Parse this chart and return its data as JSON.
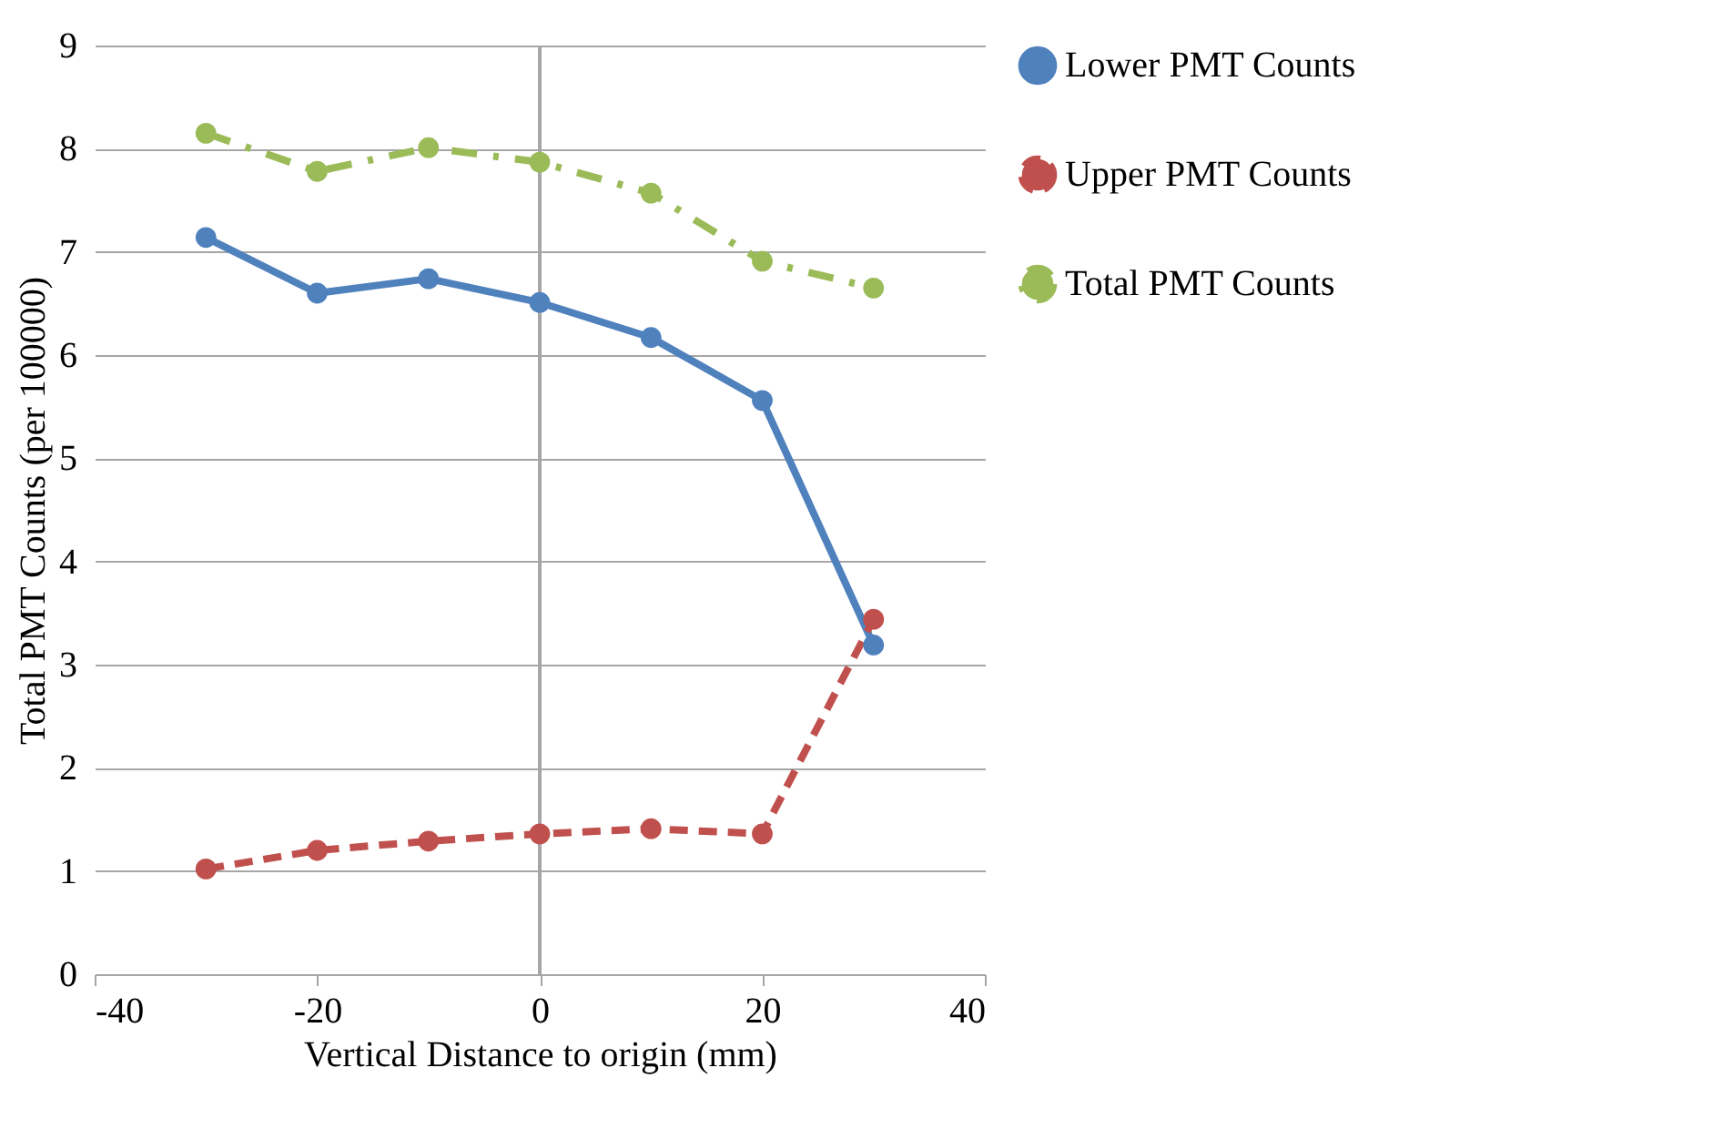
{
  "chart_data": {
    "type": "line",
    "xlabel": "Vertical Distance to origin (mm)",
    "ylabel": "Total PMT Counts (per 100000)",
    "x": [
      -30,
      -20,
      -10,
      0,
      10,
      20,
      30
    ],
    "series": [
      {
        "name": "Lower PMT Counts",
        "color": "#4f81bd",
        "line_style": "solid",
        "values": [
          7.14,
          6.6,
          6.74,
          6.51,
          6.17,
          5.56,
          3.19
        ]
      },
      {
        "name": "Upper PMT Counts",
        "color": "#c0504d",
        "line_style": "dashed",
        "values": [
          1.02,
          1.2,
          1.29,
          1.36,
          1.41,
          1.36,
          3.44
        ]
      },
      {
        "name": "Total PMT Counts",
        "color": "#9bbb59",
        "line_style": "dotted",
        "values": [
          8.15,
          7.78,
          8.01,
          7.87,
          7.57,
          6.91,
          6.65
        ]
      }
    ],
    "xlim": [
      -40,
      40
    ],
    "xticks": [
      -40,
      -20,
      0,
      20,
      40
    ],
    "ylim": [
      0,
      9
    ],
    "yticks": [
      0,
      1,
      2,
      3,
      4,
      5,
      6,
      7,
      8,
      9
    ],
    "ref_lines": [
      {
        "axis": "x",
        "value": 0,
        "color": "#a6a6a6"
      }
    ],
    "grid": "y",
    "legend": "right",
    "marker": "circle"
  }
}
